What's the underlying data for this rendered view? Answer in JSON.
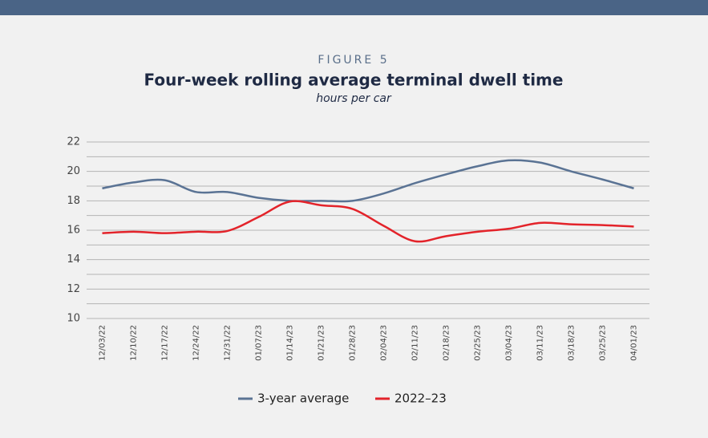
{
  "chart_data": {
    "type": "line",
    "label": "FIGURE 5",
    "title": "Four-week rolling average terminal dwell time",
    "subtitle": "hours per car",
    "categories": [
      "12/03/22",
      "12/10/22",
      "12/17/22",
      "12/24/22",
      "12/31/22",
      "01/07/23",
      "01/14/23",
      "01/21/23",
      "01/28/23",
      "02/04/23",
      "02/11/23",
      "02/18/23",
      "02/25/23",
      "03/04/23",
      "03/11/23",
      "03/18/23",
      "03/25/23",
      "04/01/23"
    ],
    "series": [
      {
        "name": "3-year average",
        "color": "#5a7394",
        "values": [
          18.85,
          19.25,
          19.4,
          18.6,
          18.6,
          18.2,
          18.0,
          18.0,
          18.0,
          18.5,
          19.2,
          19.8,
          20.35,
          20.75,
          20.6,
          20.0,
          19.45,
          18.85
        ]
      },
      {
        "name": "2022–23",
        "color": "#e3232a",
        "values": [
          15.8,
          15.9,
          15.8,
          15.9,
          15.95,
          16.9,
          17.95,
          17.7,
          17.45,
          16.3,
          15.25,
          15.6,
          15.9,
          16.1,
          16.5,
          16.4,
          16.35,
          16.25
        ]
      }
    ],
    "ylim": [
      10,
      22
    ],
    "yticks": [
      10,
      12,
      14,
      16,
      18,
      20,
      22
    ],
    "minor_yticks": [
      11,
      13,
      15,
      17,
      19,
      21
    ],
    "grid": true,
    "legend": "bottom"
  }
}
